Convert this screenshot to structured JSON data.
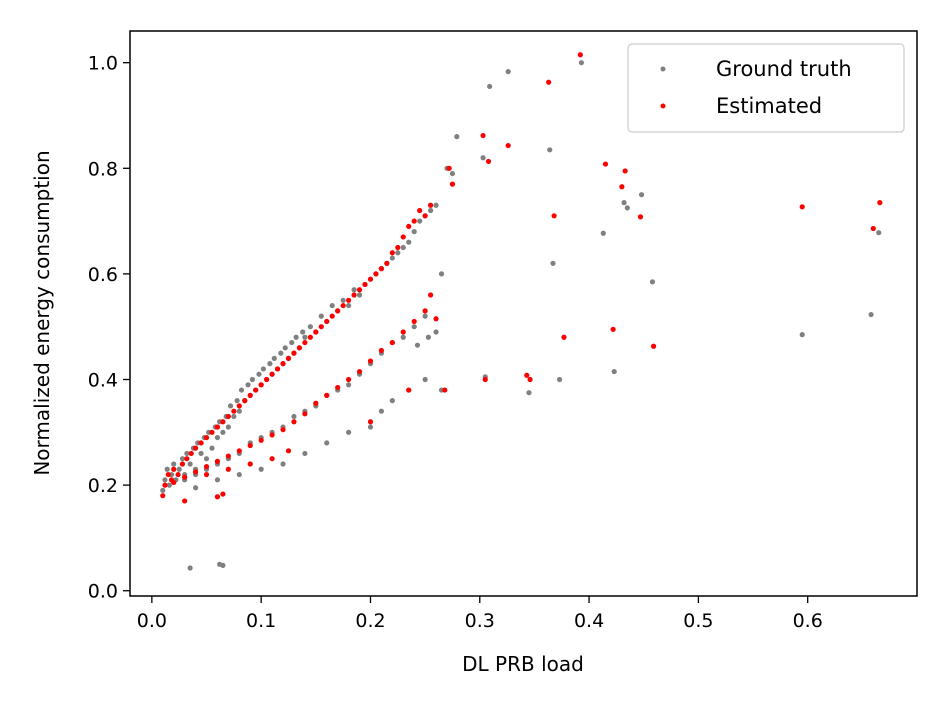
{
  "chart_data": {
    "type": "scatter",
    "title": "",
    "xlabel": "DL PRB load",
    "ylabel": "Normalized energy consumption",
    "xlim": [
      -0.02,
      0.7
    ],
    "ylim": [
      -0.01,
      1.06
    ],
    "xticks": [
      0.0,
      0.1,
      0.2,
      0.3,
      0.4,
      0.5,
      0.6
    ],
    "xtick_labels": [
      "0.0",
      "0.1",
      "0.2",
      "0.3",
      "0.4",
      "0.5",
      "0.6"
    ],
    "yticks": [
      0.0,
      0.2,
      0.4,
      0.6,
      0.8,
      1.0
    ],
    "ytick_labels": [
      "0.0",
      "0.2",
      "0.4",
      "0.6",
      "0.8",
      "1.0"
    ],
    "grid": false,
    "legend_position": "top-right",
    "series": [
      {
        "name": "Ground truth",
        "color": "#808080",
        "points": [
          [
            0.01,
            0.19
          ],
          [
            0.012,
            0.21
          ],
          [
            0.014,
            0.23
          ],
          [
            0.016,
            0.2
          ],
          [
            0.018,
            0.22
          ],
          [
            0.02,
            0.24
          ],
          [
            0.022,
            0.21
          ],
          [
            0.025,
            0.23
          ],
          [
            0.028,
            0.25
          ],
          [
            0.03,
            0.22
          ],
          [
            0.032,
            0.26
          ],
          [
            0.035,
            0.24
          ],
          [
            0.038,
            0.27
          ],
          [
            0.04,
            0.23
          ],
          [
            0.042,
            0.28
          ],
          [
            0.045,
            0.26
          ],
          [
            0.048,
            0.29
          ],
          [
            0.05,
            0.25
          ],
          [
            0.052,
            0.3
          ],
          [
            0.055,
            0.27
          ],
          [
            0.058,
            0.31
          ],
          [
            0.06,
            0.29
          ],
          [
            0.062,
            0.32
          ],
          [
            0.065,
            0.3
          ],
          [
            0.068,
            0.33
          ],
          [
            0.07,
            0.31
          ],
          [
            0.072,
            0.35
          ],
          [
            0.075,
            0.33
          ],
          [
            0.078,
            0.36
          ],
          [
            0.08,
            0.34
          ],
          [
            0.082,
            0.38
          ],
          [
            0.085,
            0.36
          ],
          [
            0.088,
            0.39
          ],
          [
            0.09,
            0.37
          ],
          [
            0.092,
            0.4
          ],
          [
            0.095,
            0.38
          ],
          [
            0.098,
            0.41
          ],
          [
            0.1,
            0.39
          ],
          [
            0.102,
            0.42
          ],
          [
            0.105,
            0.4
          ],
          [
            0.108,
            0.43
          ],
          [
            0.11,
            0.41
          ],
          [
            0.112,
            0.44
          ],
          [
            0.115,
            0.42
          ],
          [
            0.118,
            0.45
          ],
          [
            0.12,
            0.43
          ],
          [
            0.122,
            0.46
          ],
          [
            0.125,
            0.44
          ],
          [
            0.128,
            0.47
          ],
          [
            0.13,
            0.45
          ],
          [
            0.132,
            0.48
          ],
          [
            0.135,
            0.46
          ],
          [
            0.138,
            0.49
          ],
          [
            0.14,
            0.48
          ],
          [
            0.145,
            0.5
          ],
          [
            0.15,
            0.49
          ],
          [
            0.155,
            0.52
          ],
          [
            0.16,
            0.51
          ],
          [
            0.165,
            0.54
          ],
          [
            0.17,
            0.53
          ],
          [
            0.175,
            0.55
          ],
          [
            0.18,
            0.54
          ],
          [
            0.185,
            0.57
          ],
          [
            0.19,
            0.56
          ],
          [
            0.195,
            0.58
          ],
          [
            0.2,
            0.59
          ],
          [
            0.205,
            0.6
          ],
          [
            0.21,
            0.61
          ],
          [
            0.215,
            0.62
          ],
          [
            0.22,
            0.63
          ],
          [
            0.225,
            0.64
          ],
          [
            0.23,
            0.65
          ],
          [
            0.235,
            0.66
          ],
          [
            0.24,
            0.68
          ],
          [
            0.245,
            0.7
          ],
          [
            0.25,
            0.71
          ],
          [
            0.255,
            0.72
          ],
          [
            0.26,
            0.73
          ],
          [
            0.265,
            0.6
          ],
          [
            0.27,
            0.8
          ],
          [
            0.275,
            0.79
          ],
          [
            0.279,
            0.86
          ],
          [
            0.03,
            0.21
          ],
          [
            0.04,
            0.22
          ],
          [
            0.05,
            0.23
          ],
          [
            0.06,
            0.24
          ],
          [
            0.07,
            0.25
          ],
          [
            0.08,
            0.26
          ],
          [
            0.09,
            0.28
          ],
          [
            0.1,
            0.29
          ],
          [
            0.11,
            0.3
          ],
          [
            0.12,
            0.31
          ],
          [
            0.13,
            0.33
          ],
          [
            0.14,
            0.34
          ],
          [
            0.15,
            0.35
          ],
          [
            0.16,
            0.37
          ],
          [
            0.17,
            0.38
          ],
          [
            0.18,
            0.39
          ],
          [
            0.19,
            0.41
          ],
          [
            0.2,
            0.43
          ],
          [
            0.21,
            0.45
          ],
          [
            0.22,
            0.47
          ],
          [
            0.23,
            0.48
          ],
          [
            0.24,
            0.5
          ],
          [
            0.25,
            0.52
          ],
          [
            0.26,
            0.49
          ],
          [
            0.04,
            0.195
          ],
          [
            0.06,
            0.21
          ],
          [
            0.08,
            0.22
          ],
          [
            0.1,
            0.23
          ],
          [
            0.12,
            0.24
          ],
          [
            0.14,
            0.26
          ],
          [
            0.16,
            0.28
          ],
          [
            0.18,
            0.3
          ],
          [
            0.2,
            0.31
          ],
          [
            0.21,
            0.34
          ],
          [
            0.22,
            0.36
          ],
          [
            0.235,
            0.38
          ],
          [
            0.25,
            0.4
          ],
          [
            0.265,
            0.38
          ],
          [
            0.035,
            0.043
          ],
          [
            0.062,
            0.05
          ],
          [
            0.065,
            0.048
          ],
          [
            0.303,
            0.82
          ],
          [
            0.309,
            0.955
          ],
          [
            0.326,
            0.983
          ],
          [
            0.364,
            0.835
          ],
          [
            0.367,
            0.62
          ],
          [
            0.373,
            0.4
          ],
          [
            0.393,
            1.0
          ],
          [
            0.413,
            0.677
          ],
          [
            0.423,
            0.415
          ],
          [
            0.432,
            0.735
          ],
          [
            0.435,
            0.725
          ],
          [
            0.448,
            0.75
          ],
          [
            0.458,
            0.585
          ],
          [
            0.345,
            0.375
          ],
          [
            0.305,
            0.405
          ],
          [
            0.243,
            0.465
          ],
          [
            0.253,
            0.48
          ],
          [
            0.595,
            0.485
          ],
          [
            0.658,
            0.523
          ],
          [
            0.665,
            0.678
          ]
        ]
      },
      {
        "name": "Estimated",
        "color": "#ff0000",
        "points": [
          [
            0.01,
            0.18
          ],
          [
            0.012,
            0.2
          ],
          [
            0.015,
            0.22
          ],
          [
            0.018,
            0.21
          ],
          [
            0.02,
            0.23
          ],
          [
            0.024,
            0.22
          ],
          [
            0.028,
            0.24
          ],
          [
            0.032,
            0.25
          ],
          [
            0.036,
            0.26
          ],
          [
            0.04,
            0.27
          ],
          [
            0.045,
            0.28
          ],
          [
            0.05,
            0.29
          ],
          [
            0.055,
            0.3
          ],
          [
            0.06,
            0.31
          ],
          [
            0.065,
            0.32
          ],
          [
            0.07,
            0.33
          ],
          [
            0.075,
            0.34
          ],
          [
            0.08,
            0.35
          ],
          [
            0.085,
            0.36
          ],
          [
            0.09,
            0.37
          ],
          [
            0.095,
            0.38
          ],
          [
            0.1,
            0.39
          ],
          [
            0.105,
            0.4
          ],
          [
            0.11,
            0.41
          ],
          [
            0.115,
            0.42
          ],
          [
            0.12,
            0.43
          ],
          [
            0.125,
            0.44
          ],
          [
            0.13,
            0.45
          ],
          [
            0.135,
            0.46
          ],
          [
            0.14,
            0.47
          ],
          [
            0.145,
            0.48
          ],
          [
            0.15,
            0.49
          ],
          [
            0.155,
            0.5
          ],
          [
            0.16,
            0.51
          ],
          [
            0.165,
            0.52
          ],
          [
            0.17,
            0.53
          ],
          [
            0.175,
            0.54
          ],
          [
            0.18,
            0.55
          ],
          [
            0.185,
            0.56
          ],
          [
            0.19,
            0.57
          ],
          [
            0.195,
            0.58
          ],
          [
            0.2,
            0.59
          ],
          [
            0.205,
            0.6
          ],
          [
            0.21,
            0.61
          ],
          [
            0.215,
            0.62
          ],
          [
            0.22,
            0.64
          ],
          [
            0.225,
            0.65
          ],
          [
            0.23,
            0.67
          ],
          [
            0.235,
            0.69
          ],
          [
            0.24,
            0.7
          ],
          [
            0.245,
            0.72
          ],
          [
            0.25,
            0.71
          ],
          [
            0.255,
            0.73
          ],
          [
            0.272,
            0.8
          ],
          [
            0.275,
            0.77
          ],
          [
            0.02,
            0.205
          ],
          [
            0.03,
            0.215
          ],
          [
            0.04,
            0.225
          ],
          [
            0.05,
            0.235
          ],
          [
            0.06,
            0.245
          ],
          [
            0.07,
            0.255
          ],
          [
            0.08,
            0.265
          ],
          [
            0.09,
            0.275
          ],
          [
            0.1,
            0.285
          ],
          [
            0.11,
            0.295
          ],
          [
            0.12,
            0.305
          ],
          [
            0.13,
            0.32
          ],
          [
            0.14,
            0.335
          ],
          [
            0.15,
            0.355
          ],
          [
            0.16,
            0.37
          ],
          [
            0.17,
            0.385
          ],
          [
            0.18,
            0.4
          ],
          [
            0.19,
            0.415
          ],
          [
            0.2,
            0.435
          ],
          [
            0.21,
            0.455
          ],
          [
            0.22,
            0.47
          ],
          [
            0.23,
            0.49
          ],
          [
            0.24,
            0.51
          ],
          [
            0.25,
            0.53
          ],
          [
            0.255,
            0.56
          ],
          [
            0.26,
            0.515
          ],
          [
            0.05,
            0.22
          ],
          [
            0.07,
            0.23
          ],
          [
            0.09,
            0.24
          ],
          [
            0.11,
            0.25
          ],
          [
            0.125,
            0.265
          ],
          [
            0.2,
            0.32
          ],
          [
            0.235,
            0.38
          ],
          [
            0.268,
            0.38
          ],
          [
            0.03,
            0.17
          ],
          [
            0.065,
            0.183
          ],
          [
            0.06,
            0.178
          ],
          [
            0.303,
            0.862
          ],
          [
            0.308,
            0.813
          ],
          [
            0.326,
            0.843
          ],
          [
            0.363,
            0.963
          ],
          [
            0.368,
            0.71
          ],
          [
            0.377,
            0.48
          ],
          [
            0.392,
            1.015
          ],
          [
            0.415,
            0.808
          ],
          [
            0.422,
            0.495
          ],
          [
            0.43,
            0.765
          ],
          [
            0.433,
            0.795
          ],
          [
            0.447,
            0.708
          ],
          [
            0.459,
            0.463
          ],
          [
            0.343,
            0.408
          ],
          [
            0.346,
            0.4
          ],
          [
            0.305,
            0.4
          ],
          [
            0.595,
            0.727
          ],
          [
            0.66,
            0.686
          ],
          [
            0.666,
            0.735
          ]
        ]
      }
    ]
  }
}
